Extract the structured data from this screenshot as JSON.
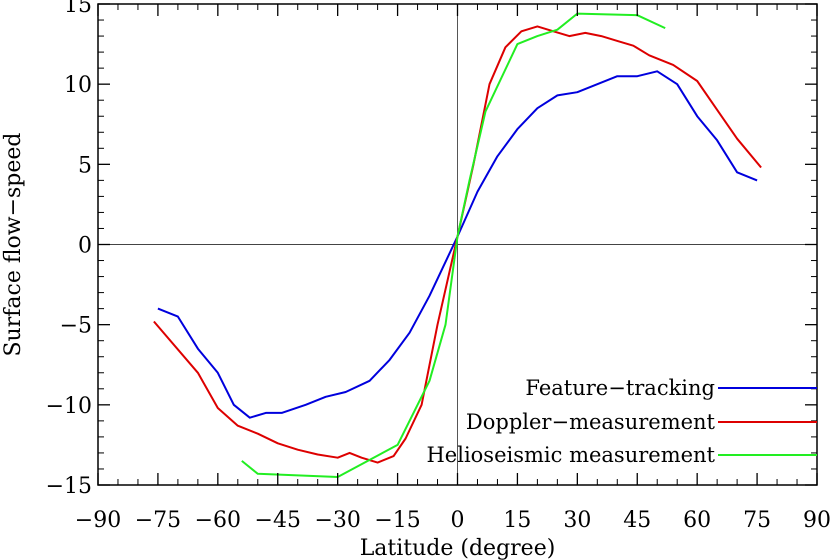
{
  "chart_data": {
    "type": "line",
    "title": "",
    "xlabel": "Latitude (degree)",
    "ylabel": "Surface flow−speed",
    "xlim": [
      -90,
      90
    ],
    "ylim": [
      -15,
      15
    ],
    "xticks": [
      -90,
      -75,
      -60,
      -45,
      -30,
      -15,
      0,
      15,
      30,
      45,
      60,
      75,
      90
    ],
    "yticks": [
      -15,
      -10,
      -5,
      0,
      5,
      10,
      15
    ],
    "grid": false,
    "zero_lines": true,
    "legend_position": "bottom-right",
    "series": [
      {
        "name": "Feature−tracking",
        "color": "#0000dd",
        "points": [
          [
            -75,
            -4.0
          ],
          [
            -70,
            -4.5
          ],
          [
            -65,
            -6.5
          ],
          [
            -60,
            -8.0
          ],
          [
            -56,
            -10.0
          ],
          [
            -52,
            -10.8
          ],
          [
            -48,
            -10.5
          ],
          [
            -44,
            -10.5
          ],
          [
            -38,
            -10.0
          ],
          [
            -33,
            -9.5
          ],
          [
            -28,
            -9.2
          ],
          [
            -22,
            -8.5
          ],
          [
            -17,
            -7.2
          ],
          [
            -12,
            -5.5
          ],
          [
            -7,
            -3.2
          ],
          [
            0,
            0.5
          ],
          [
            5,
            3.3
          ],
          [
            10,
            5.5
          ],
          [
            15,
            7.2
          ],
          [
            20,
            8.5
          ],
          [
            25,
            9.3
          ],
          [
            30,
            9.5
          ],
          [
            35,
            10.0
          ],
          [
            40,
            10.5
          ],
          [
            45,
            10.5
          ],
          [
            50,
            10.8
          ],
          [
            55,
            10.0
          ],
          [
            60,
            8.0
          ],
          [
            65,
            6.5
          ],
          [
            70,
            4.5
          ],
          [
            75,
            4.0
          ]
        ]
      },
      {
        "name": "Doppler−measurement",
        "color": "#dd0000",
        "points": [
          [
            -76,
            -4.8
          ],
          [
            -65,
            -8.0
          ],
          [
            -60,
            -10.2
          ],
          [
            -55,
            -11.3
          ],
          [
            -50,
            -11.8
          ],
          [
            -45,
            -12.4
          ],
          [
            -40,
            -12.8
          ],
          [
            -35,
            -13.1
          ],
          [
            -30,
            -13.3
          ],
          [
            -27,
            -13.0
          ],
          [
            -24,
            -13.3
          ],
          [
            -20,
            -13.6
          ],
          [
            -16,
            -13.2
          ],
          [
            -13,
            -12.1
          ],
          [
            -9,
            -10.0
          ],
          [
            -5,
            -5.0
          ],
          [
            0,
            0.5
          ],
          [
            4,
            5.0
          ],
          [
            8,
            10.0
          ],
          [
            12,
            12.3
          ],
          [
            16,
            13.3
          ],
          [
            20,
            13.6
          ],
          [
            24,
            13.3
          ],
          [
            28,
            13.0
          ],
          [
            32,
            13.2
          ],
          [
            36,
            13.0
          ],
          [
            40,
            12.7
          ],
          [
            44,
            12.4
          ],
          [
            48,
            11.8
          ],
          [
            54,
            11.2
          ],
          [
            60,
            10.2
          ],
          [
            65,
            8.4
          ],
          [
            70,
            6.6
          ],
          [
            76,
            4.8
          ]
        ]
      },
      {
        "name": "Helioseismic measurement",
        "color": "#22ee22",
        "points": [
          [
            -54,
            -13.5
          ],
          [
            -50,
            -14.3
          ],
          [
            -40,
            -14.4
          ],
          [
            -30,
            -14.5
          ],
          [
            -15,
            -12.5
          ],
          [
            -7,
            -8.5
          ],
          [
            -3,
            -5.0
          ],
          [
            0,
            0.5
          ],
          [
            3,
            4.0
          ],
          [
            7,
            8.3
          ],
          [
            15,
            12.5
          ],
          [
            20,
            13.0
          ],
          [
            25,
            13.4
          ],
          [
            30,
            14.4
          ],
          [
            45,
            14.3
          ],
          [
            52,
            13.5
          ]
        ]
      }
    ]
  }
}
